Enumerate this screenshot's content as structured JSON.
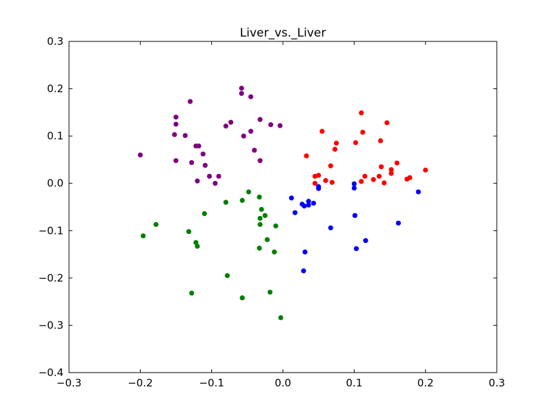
{
  "chart_data": {
    "type": "scatter",
    "title": "Liver_vs._Liver",
    "xlabel": "",
    "ylabel": "",
    "xlim": [
      -0.3,
      0.3
    ],
    "ylim": [
      -0.4,
      0.3
    ],
    "grid": false,
    "x_ticks": [
      "−0.3",
      "−0.2",
      "−0.1",
      "0.0",
      "0.1",
      "0.2",
      "0.3"
    ],
    "x_tick_values": [
      -0.3,
      -0.2,
      -0.1,
      0.0,
      0.1,
      0.2,
      0.3
    ],
    "y_ticks": [
      "0.3",
      "0.2",
      "0.1",
      "0.0",
      "−0.1",
      "−0.2",
      "−0.3",
      "−0.4"
    ],
    "y_tick_values": [
      0.3,
      0.2,
      0.1,
      0.0,
      -0.1,
      -0.2,
      -0.3,
      -0.4
    ],
    "series": [
      {
        "color": "#800080",
        "points": [
          [
            -0.2,
            0.06
          ],
          [
            -0.15,
            0.14
          ],
          [
            -0.15,
            0.125
          ],
          [
            -0.152,
            0.103
          ],
          [
            -0.15,
            0.048
          ],
          [
            -0.13,
            0.173
          ],
          [
            -0.137,
            0.101
          ],
          [
            -0.122,
            0.079
          ],
          [
            -0.118,
            0.079
          ],
          [
            -0.128,
            0.044
          ],
          [
            -0.112,
            0.062
          ],
          [
            -0.109,
            0.038
          ],
          [
            -0.103,
            0.015
          ],
          [
            -0.12,
            0.005
          ],
          [
            -0.09,
            0.015
          ],
          [
            -0.095,
            0.0
          ],
          [
            -0.08,
            0.121
          ],
          [
            -0.073,
            0.129
          ],
          [
            -0.058,
            0.201
          ],
          [
            -0.058,
            0.19
          ],
          [
            -0.045,
            0.183
          ],
          [
            -0.055,
            0.1
          ],
          [
            -0.045,
            0.11
          ],
          [
            -0.04,
            0.07
          ],
          [
            -0.032,
            0.135
          ],
          [
            -0.017,
            0.124
          ],
          [
            -0.004,
            0.122
          ],
          [
            -0.032,
            0.048
          ]
        ]
      },
      {
        "color": "#ff0000",
        "points": [
          [
            0.033,
            0.058
          ],
          [
            0.045,
            0.015
          ],
          [
            0.05,
            0.017
          ],
          [
            0.055,
            0.11
          ],
          [
            0.045,
            0.0
          ],
          [
            0.06,
            0.006
          ],
          [
            0.067,
            0.037
          ],
          [
            0.069,
            0.002
          ],
          [
            0.073,
            0.072
          ],
          [
            0.075,
            0.085
          ],
          [
            0.102,
            0.086
          ],
          [
            0.11,
            0.149
          ],
          [
            0.112,
            0.108
          ],
          [
            0.11,
            0.004
          ],
          [
            0.115,
            0.015
          ],
          [
            0.127,
            0.008
          ],
          [
            0.135,
            0.015
          ],
          [
            0.138,
            0.035
          ],
          [
            0.137,
            0.09
          ],
          [
            0.142,
            0.001
          ],
          [
            0.146,
            0.128
          ],
          [
            0.152,
            0.021
          ],
          [
            0.152,
            0.029
          ],
          [
            0.16,
            0.043
          ],
          [
            0.174,
            0.009
          ],
          [
            0.178,
            0.012
          ],
          [
            0.2,
            0.028
          ]
        ]
      },
      {
        "color": "#0000ff",
        "points": [
          [
            0.012,
            -0.031
          ],
          [
            0.017,
            -0.062
          ],
          [
            0.027,
            -0.044
          ],
          [
            0.03,
            -0.048
          ],
          [
            0.036,
            -0.038
          ],
          [
            0.036,
            -0.046
          ],
          [
            0.043,
            -0.042
          ],
          [
            0.05,
            -0.007
          ],
          [
            0.05,
            -0.011
          ],
          [
            0.031,
            -0.145
          ],
          [
            0.029,
            -0.185
          ],
          [
            0.067,
            -0.094
          ],
          [
            0.1,
            -0.001
          ],
          [
            0.1,
            -0.01
          ],
          [
            0.101,
            -0.068
          ],
          [
            0.103,
            -0.138
          ],
          [
            0.116,
            -0.121
          ],
          [
            0.162,
            -0.084
          ],
          [
            0.19,
            -0.018
          ]
        ]
      },
      {
        "color": "#008000",
        "points": [
          [
            -0.196,
            -0.111
          ],
          [
            -0.178,
            -0.087
          ],
          [
            -0.132,
            -0.102
          ],
          [
            -0.122,
            -0.125
          ],
          [
            -0.12,
            -0.133
          ],
          [
            -0.11,
            -0.064
          ],
          [
            -0.08,
            -0.04
          ],
          [
            -0.078,
            -0.195
          ],
          [
            -0.057,
            -0.036
          ],
          [
            -0.048,
            -0.018
          ],
          [
            -0.033,
            -0.029
          ],
          [
            -0.032,
            -0.074
          ],
          [
            -0.03,
            -0.055
          ],
          [
            -0.025,
            -0.068
          ],
          [
            -0.032,
            -0.087
          ],
          [
            -0.033,
            -0.137
          ],
          [
            -0.022,
            -0.119
          ],
          [
            -0.01,
            -0.09
          ],
          [
            -0.012,
            -0.145
          ],
          [
            -0.128,
            -0.232
          ],
          [
            -0.057,
            -0.242
          ],
          [
            -0.018,
            -0.23
          ],
          [
            -0.003,
            -0.284
          ]
        ]
      }
    ]
  }
}
